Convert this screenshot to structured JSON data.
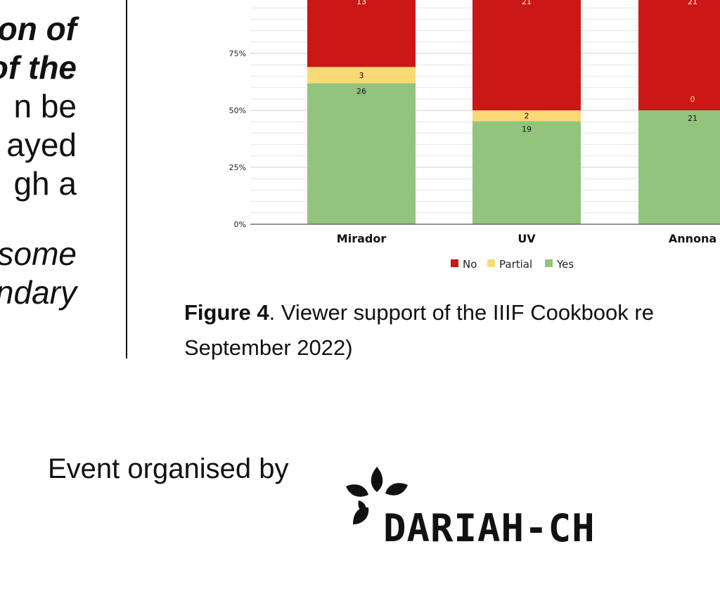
{
  "left_text": {
    "lines": [
      {
        "text": "on of",
        "style": "bi"
      },
      {
        "text": "of the",
        "style": "bi"
      },
      {
        "text": "n be",
        "style": "normal"
      },
      {
        "text": "ayed",
        "style": "normal"
      },
      {
        "text": "gh a",
        "style": "normal"
      },
      {
        "text": "some",
        "style": "it"
      },
      {
        "text": "ndary",
        "style": "it"
      }
    ]
  },
  "chart_data": {
    "type": "bar",
    "stacked": true,
    "percent": true,
    "categories": [
      "Mirador",
      "UV",
      "Annona"
    ],
    "series": [
      {
        "name": "Yes",
        "color": "#93c47d",
        "values": [
          26,
          19,
          21
        ]
      },
      {
        "name": "Partial",
        "color": "#f9d975",
        "values": [
          3,
          2,
          0
        ]
      },
      {
        "name": "No",
        "color": "#cc1717",
        "values": [
          13,
          21,
          21
        ]
      }
    ],
    "y_ticks": [
      "0%",
      "25%",
      "50%",
      "75%"
    ],
    "ylim": [
      0,
      100
    ],
    "legend_position": "bottom",
    "legend": [
      "No",
      "Partial",
      "Yes"
    ],
    "grid": true
  },
  "caption": {
    "label": "Figure 4",
    "text": ". Viewer support of the IIIF Cookbook re",
    "line2": "September 2022)"
  },
  "footer": {
    "organiser_label": "Event organised by",
    "logo_text": "DARIAH-CH"
  }
}
